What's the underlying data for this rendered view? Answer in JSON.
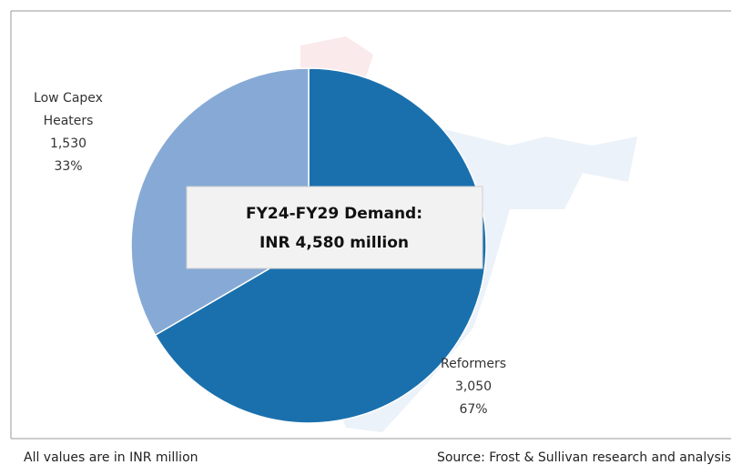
{
  "chart_data": {
    "type": "pie",
    "categories": [
      "Reformers",
      "Low Capex Heaters"
    ],
    "values": [
      3050,
      1530
    ],
    "value_labels": [
      "3,050",
      "1,530"
    ],
    "percent_labels": [
      "67%",
      "33%"
    ],
    "colors": [
      "#1a70ad",
      "#86aad5"
    ],
    "center_title": "FY24-FY29 Demand:",
    "center_subtitle": "INR 4,580 million",
    "note": "All values are in INR million",
    "source": "Source: Frost & Sullivan research and analysis"
  }
}
